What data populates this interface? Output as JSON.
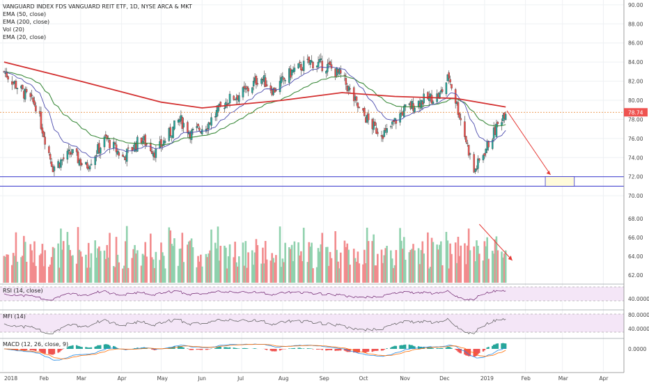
{
  "legend": {
    "title": "VANGUARD INDEX FDS VANGUARD REIT ETF, 1D, NYSE ARCA & MKT",
    "lines": [
      "EMA (50, close)",
      "EMA (200, close)",
      "Vol (20)",
      "EMA (20, close)"
    ]
  },
  "panels": {
    "rsi_label": "RSI (14, close)",
    "mfi_label": "MFI (14)",
    "macd_label": "MACD (12, 26, close, 9)"
  },
  "colors": {
    "up": "#26a69a",
    "down": "#ef5350",
    "vol_up": "#8fd1ad",
    "vol_down": "#f28b8d",
    "ema50": "#3d8b3d",
    "ema200": "#d32f2f",
    "ema20": "#4a4aad",
    "support": "#3333cc",
    "price_line": "#e67e22",
    "rsi": "#6b1f6b",
    "mfi": "#555555",
    "panel_bg": "#f4e6f7",
    "target_box": "#fffbdb"
  },
  "chart_data": {
    "type": "candlestick",
    "x_months": [
      "2018",
      "Feb",
      "Mar",
      "Apr",
      "May",
      "Jun",
      "Jul",
      "Aug",
      "Sep",
      "Oct",
      "Nov",
      "Dec",
      "2019",
      "Feb",
      "Mar",
      "Apr"
    ],
    "price_axis": {
      "range": [
        69.5,
        90.5
      ],
      "ticks": [
        "90.00",
        "88.00",
        "86.00",
        "84.00",
        "82.00",
        "80.00",
        "78.00",
        "76.00",
        "74.00",
        "72.00",
        "70.00"
      ]
    },
    "volume_axis": {
      "ticks": [
        "68.00",
        "66.00",
        "64.00",
        "62.00"
      ]
    },
    "rsi_axis": {
      "ticks": [
        "40.0000"
      ]
    },
    "mfi_axis": {
      "ticks": [
        "80.0000",
        "40.0000"
      ]
    },
    "macd_axis": {
      "ticks": [
        "0.0000"
      ]
    },
    "last_price": 78.74,
    "last_price_label": "78.74",
    "support_levels": [
      72.0,
      71.0
    ],
    "close_keypoints": [
      [
        "2018-01-02",
        83.0
      ],
      [
        "2018-01-15",
        81.0
      ],
      [
        "2018-01-26",
        79.5
      ],
      [
        "2018-02-08",
        73.0
      ],
      [
        "2018-02-22",
        74.5
      ],
      [
        "2018-03-05",
        73.0
      ],
      [
        "2018-03-20",
        76.0
      ],
      [
        "2018-04-02",
        74.0
      ],
      [
        "2018-04-16",
        76.0
      ],
      [
        "2018-04-27",
        74.5
      ],
      [
        "2018-05-15",
        78.0
      ],
      [
        "2018-05-24",
        76.5
      ],
      [
        "2018-06-05",
        77.5
      ],
      [
        "2018-06-20",
        80.0
      ],
      [
        "2018-07-05",
        81.0
      ],
      [
        "2018-07-15",
        82.5
      ],
      [
        "2018-07-25",
        81.0
      ],
      [
        "2018-08-08",
        83.0
      ],
      [
        "2018-08-22",
        84.0
      ],
      [
        "2018-09-05",
        83.5
      ],
      [
        "2018-09-15",
        82.5
      ],
      [
        "2018-09-28",
        79.0
      ],
      [
        "2018-10-10",
        77.0
      ],
      [
        "2018-10-18",
        76.5
      ],
      [
        "2018-11-01",
        79.0
      ],
      [
        "2018-11-15",
        80.0
      ],
      [
        "2018-11-28",
        80.5
      ],
      [
        "2018-12-05",
        82.5
      ],
      [
        "2018-12-14",
        78.0
      ],
      [
        "2018-12-24",
        72.5
      ],
      [
        "2019-01-04",
        75.5
      ],
      [
        "2019-01-17",
        79.0
      ]
    ],
    "ema200_keypoints": [
      [
        "2018-01-02",
        84.0
      ],
      [
        "2018-03-01",
        82.0
      ],
      [
        "2018-05-01",
        79.8
      ],
      [
        "2018-06-01",
        79.2
      ],
      [
        "2018-08-01",
        80.0
      ],
      [
        "2018-09-15",
        80.8
      ],
      [
        "2018-10-25",
        80.4
      ],
      [
        "2018-12-10",
        80.2
      ],
      [
        "2019-01-17",
        79.3
      ]
    ],
    "annotation": {
      "arrow_from": [
        "2019-01-18",
        78.9
      ],
      "arrow_to": [
        "2019-02-20",
        72.2
      ],
      "target_zone": {
        "x": [
          "2019-02-16",
          "2019-03-10"
        ],
        "y": [
          71.0,
          72.0
        ]
      }
    }
  }
}
